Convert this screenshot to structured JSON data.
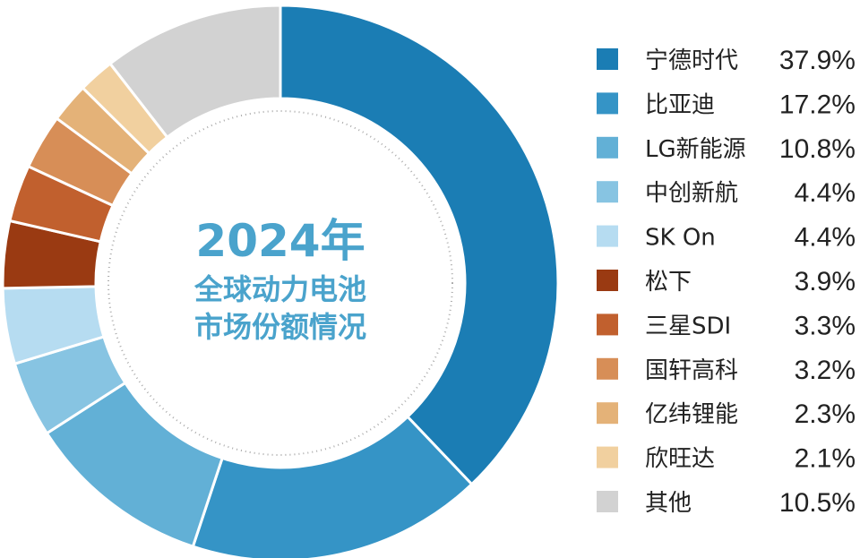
{
  "chart_data": {
    "type": "pie",
    "title_lines": [
      "2024年",
      "全球动力电池",
      "市场份额情况"
    ],
    "categories": [
      "宁德时代",
      "比亚迪",
      "LG新能源",
      "中创新航",
      "SK On",
      "松下",
      "三星SDI",
      "国轩高科",
      "亿纬锂能",
      "欣旺达",
      "其他"
    ],
    "values": [
      37.9,
      17.2,
      10.8,
      4.4,
      4.4,
      3.9,
      3.3,
      3.2,
      2.3,
      2.1,
      10.5
    ],
    "value_labels": [
      "37.9%",
      "17.2%",
      "10.8%",
      "4.4%",
      "4.4%",
      "3.9%",
      "3.3%",
      "3.2%",
      "2.3%",
      "2.1%",
      "10.5%"
    ],
    "colors": [
      "#1b7db4",
      "#3594c6",
      "#62b0d6",
      "#87c4e2",
      "#b6dcf1",
      "#9a3a12",
      "#c1602e",
      "#d78e57",
      "#e4b278",
      "#f1d09f",
      "#d2d2d2"
    ],
    "legend_position": "right",
    "style": "donut"
  }
}
